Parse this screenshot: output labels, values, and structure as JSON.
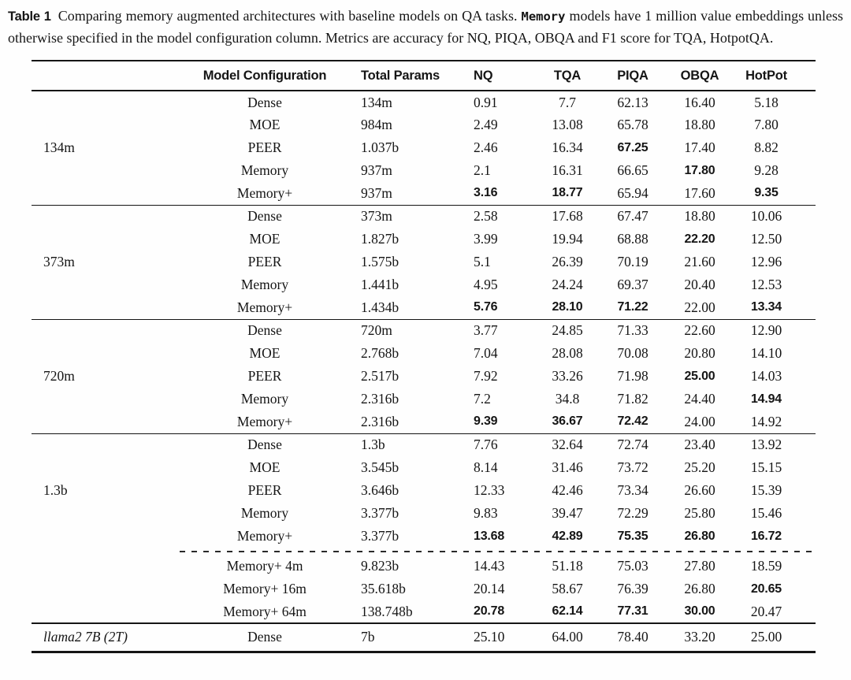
{
  "colors": {
    "text": "#151515",
    "background": "#fefefe"
  },
  "caption": {
    "label": "Table 1",
    "text_before_memory": "Comparing memory augmented architectures with baseline models on QA tasks.",
    "memory_word": "Memory",
    "text_after_memory": "models have 1 million value embeddings unless otherwise specified in the model configuration column. Metrics are accuracy for NQ, PIQA, OBQA and F1 score for TQA, HotpotQA."
  },
  "table": {
    "columns": [
      "",
      "Model Configuration",
      "Total Params",
      "NQ",
      "TQA",
      "PIQA",
      "OBQA",
      "HotPot"
    ],
    "groups": [
      {
        "label": "134m",
        "italic": false,
        "rows": [
          {
            "config": "Dense",
            "params": "134m",
            "vals": [
              "0.91",
              "7.7",
              "62.13",
              "16.40",
              "5.18"
            ],
            "bold": [
              0,
              0,
              0,
              0,
              0
            ]
          },
          {
            "config": "MOE",
            "params": "984m",
            "vals": [
              "2.49",
              "13.08",
              "65.78",
              "18.80",
              "7.80"
            ],
            "bold": [
              0,
              0,
              0,
              0,
              0
            ]
          },
          {
            "config": "PEER",
            "params": "1.037b",
            "vals": [
              "2.46",
              "16.34",
              "67.25",
              "17.40",
              "8.82"
            ],
            "bold": [
              0,
              0,
              1,
              0,
              0
            ]
          },
          {
            "config": "Memory",
            "params": "937m",
            "vals": [
              "2.1",
              "16.31",
              "66.65",
              "17.80",
              "9.28"
            ],
            "bold": [
              0,
              0,
              0,
              1,
              0
            ]
          },
          {
            "config": "Memory+",
            "params": "937m",
            "vals": [
              "3.16",
              "18.77",
              "65.94",
              "17.60",
              "9.35"
            ],
            "bold": [
              1,
              1,
              0,
              0,
              1
            ]
          }
        ]
      },
      {
        "label": "373m",
        "italic": false,
        "rows": [
          {
            "config": "Dense",
            "params": "373m",
            "vals": [
              "2.58",
              "17.68",
              "67.47",
              "18.80",
              "10.06"
            ],
            "bold": [
              0,
              0,
              0,
              0,
              0
            ]
          },
          {
            "config": "MOE",
            "params": "1.827b",
            "vals": [
              "3.99",
              "19.94",
              "68.88",
              "22.20",
              "12.50"
            ],
            "bold": [
              0,
              0,
              0,
              1,
              0
            ]
          },
          {
            "config": "PEER",
            "params": "1.575b",
            "vals": [
              "5.1",
              "26.39",
              "70.19",
              "21.60",
              "12.96"
            ],
            "bold": [
              0,
              0,
              0,
              0,
              0
            ]
          },
          {
            "config": "Memory",
            "params": "1.441b",
            "vals": [
              "4.95",
              "24.24",
              "69.37",
              "20.40",
              "12.53"
            ],
            "bold": [
              0,
              0,
              0,
              0,
              0
            ]
          },
          {
            "config": "Memory+",
            "params": "1.434b",
            "vals": [
              "5.76",
              "28.10",
              "71.22",
              "22.00",
              "13.34"
            ],
            "bold": [
              1,
              1,
              1,
              0,
              1
            ]
          }
        ]
      },
      {
        "label": "720m",
        "italic": false,
        "rows": [
          {
            "config": "Dense",
            "params": "720m",
            "vals": [
              "3.77",
              "24.85",
              "71.33",
              "22.60",
              "12.90"
            ],
            "bold": [
              0,
              0,
              0,
              0,
              0
            ]
          },
          {
            "config": "MOE",
            "params": "2.768b",
            "vals": [
              "7.04",
              "28.08",
              "70.08",
              "20.80",
              "14.10"
            ],
            "bold": [
              0,
              0,
              0,
              0,
              0
            ]
          },
          {
            "config": "PEER",
            "params": "2.517b",
            "vals": [
              "7.92",
              "33.26",
              "71.98",
              "25.00",
              "14.03"
            ],
            "bold": [
              0,
              0,
              0,
              1,
              0
            ]
          },
          {
            "config": "Memory",
            "params": "2.316b",
            "vals": [
              "7.2",
              "34.8",
              "71.82",
              "24.40",
              "14.94"
            ],
            "bold": [
              0,
              0,
              0,
              0,
              1
            ]
          },
          {
            "config": "Memory+",
            "params": "2.316b",
            "vals": [
              "9.39",
              "36.67",
              "72.42",
              "24.00",
              "14.92"
            ],
            "bold": [
              1,
              1,
              1,
              0,
              0
            ]
          }
        ]
      },
      {
        "label": "1.3b",
        "italic": false,
        "rows": [
          {
            "config": "Dense",
            "params": "1.3b",
            "vals": [
              "7.76",
              "32.64",
              "72.74",
              "23.40",
              "13.92"
            ],
            "bold": [
              0,
              0,
              0,
              0,
              0
            ]
          },
          {
            "config": "MOE",
            "params": "3.545b",
            "vals": [
              "8.14",
              "31.46",
              "73.72",
              "25.20",
              "15.15"
            ],
            "bold": [
              0,
              0,
              0,
              0,
              0
            ]
          },
          {
            "config": "PEER",
            "params": "3.646b",
            "vals": [
              "12.33",
              "42.46",
              "73.34",
              "26.60",
              "15.39"
            ],
            "bold": [
              0,
              0,
              0,
              0,
              0
            ]
          },
          {
            "config": "Memory",
            "params": "3.377b",
            "vals": [
              "9.83",
              "39.47",
              "72.29",
              "25.80",
              "15.46"
            ],
            "bold": [
              0,
              0,
              0,
              0,
              0
            ]
          },
          {
            "config": "Memory+",
            "params": "3.377b",
            "vals": [
              "13.68",
              "42.89",
              "75.35",
              "26.80",
              "16.72"
            ],
            "bold": [
              1,
              1,
              1,
              1,
              1
            ]
          }
        ],
        "extra_rows": [
          {
            "config": "Memory+ 4m",
            "params": "9.823b",
            "vals": [
              "14.43",
              "51.18",
              "75.03",
              "27.80",
              "18.59"
            ],
            "bold": [
              0,
              0,
              0,
              0,
              0
            ]
          },
          {
            "config": "Memory+ 16m",
            "params": "35.618b",
            "vals": [
              "20.14",
              "58.67",
              "76.39",
              "26.80",
              "20.65"
            ],
            "bold": [
              0,
              0,
              0,
              0,
              1
            ]
          },
          {
            "config": "Memory+ 64m",
            "params": "138.748b",
            "vals": [
              "20.78",
              "62.14",
              "77.31",
              "30.00",
              "20.47"
            ],
            "bold": [
              1,
              1,
              1,
              1,
              0
            ]
          }
        ]
      },
      {
        "label": "llama2 7B (2T)",
        "italic": true,
        "heavy_top": true,
        "rows": [
          {
            "config": "Dense",
            "params": "7b",
            "vals": [
              "25.10",
              "64.00",
              "78.40",
              "33.20",
              "25.00"
            ],
            "bold": [
              0,
              0,
              0,
              0,
              0
            ]
          }
        ]
      }
    ]
  }
}
